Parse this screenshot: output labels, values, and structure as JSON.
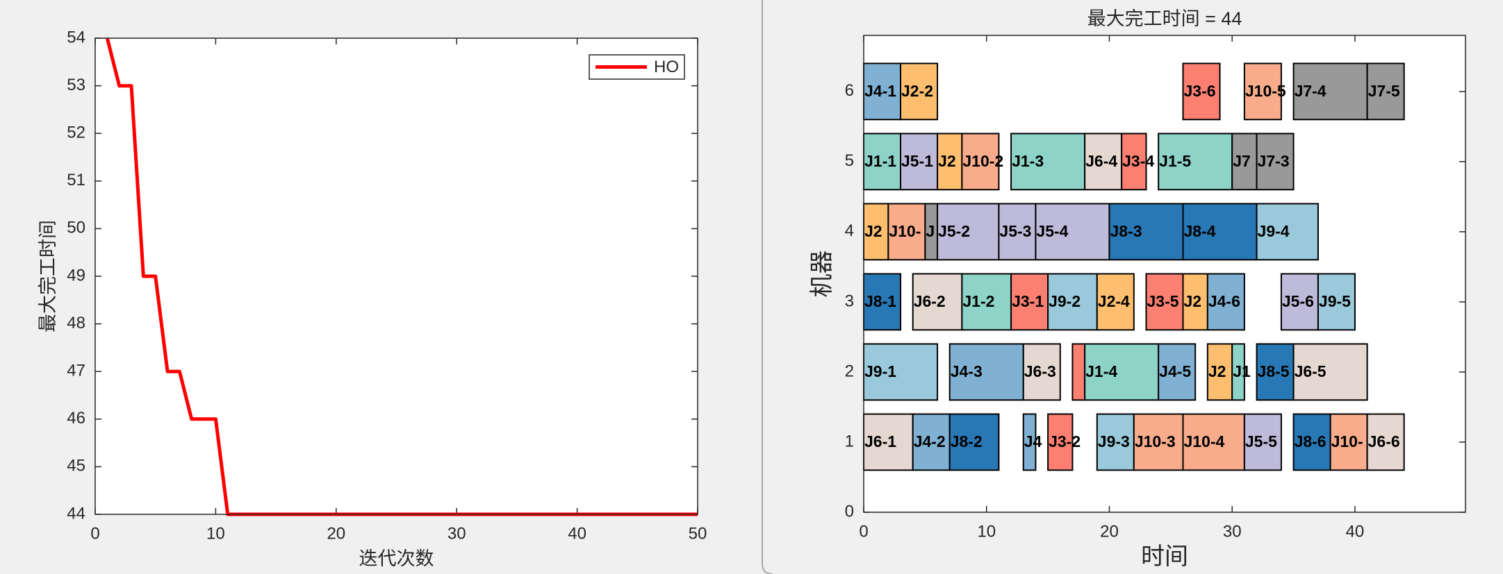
{
  "chart_data": [
    {
      "type": "line",
      "xlabel": "迭代次数",
      "ylabel": "最大完工时间",
      "x": [
        1,
        2,
        3,
        4,
        5,
        6,
        7,
        8,
        9,
        10,
        11,
        12,
        13,
        14,
        15,
        16,
        17,
        18,
        19,
        20,
        21,
        22,
        23,
        24,
        25,
        26,
        27,
        28,
        29,
        30,
        31,
        32,
        33,
        34,
        35,
        36,
        37,
        38,
        39,
        40,
        41,
        42,
        43,
        44,
        45,
        46,
        47,
        48,
        49,
        50
      ],
      "series": [
        {
          "name": "HO",
          "color": "#ff0000",
          "values": [
            54,
            53,
            53,
            49,
            49,
            47,
            47,
            46,
            46,
            46,
            44,
            44,
            44,
            44,
            44,
            44,
            44,
            44,
            44,
            44,
            44,
            44,
            44,
            44,
            44,
            44,
            44,
            44,
            44,
            44,
            44,
            44,
            44,
            44,
            44,
            44,
            44,
            44,
            44,
            44,
            44,
            44,
            44,
            44,
            44,
            44,
            44,
            44,
            44,
            44
          ]
        }
      ],
      "xlim": [
        0,
        50
      ],
      "xticks": [
        0,
        10,
        20,
        30,
        40,
        50
      ],
      "ylim": [
        44,
        54
      ],
      "yticks": [
        44,
        45,
        46,
        47,
        48,
        49,
        50,
        51,
        52,
        53,
        54
      ],
      "legend": "upper right"
    },
    {
      "type": "gantt",
      "title": "最大完工时间 = 44",
      "xlabel": "时间",
      "ylabel": "机器",
      "xlim": [
        0,
        49
      ],
      "xticks": [
        0,
        10,
        20,
        30,
        40
      ],
      "ylim": [
        0,
        6.8
      ],
      "yticks": [
        0,
        1,
        2,
        3,
        4,
        5,
        6
      ],
      "tasks": [
        {
          "machine": 6,
          "start": 0,
          "end": 3,
          "label": "J4-1",
          "color": "#80b1d3"
        },
        {
          "machine": 6,
          "start": 3,
          "end": 6,
          "label": "J2-2",
          "color": "#fdbf6f"
        },
        {
          "machine": 6,
          "start": 26,
          "end": 29,
          "label": "J3-6",
          "color": "#fb8072"
        },
        {
          "machine": 6,
          "start": 31,
          "end": 34,
          "label": "J10-5",
          "color": "#f8ac8c"
        },
        {
          "machine": 6,
          "start": 35,
          "end": 41,
          "label": "J7-4",
          "color": "#999999"
        },
        {
          "machine": 6,
          "start": 41,
          "end": 44,
          "label": "J7-5",
          "color": "#999999"
        },
        {
          "machine": 5,
          "start": 0,
          "end": 3,
          "label": "J1-1",
          "color": "#8dd3c7"
        },
        {
          "machine": 5,
          "start": 3,
          "end": 6,
          "label": "J5-1",
          "color": "#bebada"
        },
        {
          "machine": 5,
          "start": 6,
          "end": 8,
          "label": "J2",
          "color": "#fdbf6f"
        },
        {
          "machine": 5,
          "start": 8,
          "end": 11,
          "label": "J10-2",
          "color": "#f8ac8c"
        },
        {
          "machine": 5,
          "start": 12,
          "end": 18,
          "label": "J1-3",
          "color": "#8dd3c7"
        },
        {
          "machine": 5,
          "start": 18,
          "end": 21,
          "label": "J6-4",
          "color": "#e5d8d0"
        },
        {
          "machine": 5,
          "start": 21,
          "end": 23,
          "label": "J3-4",
          "color": "#fb8072"
        },
        {
          "machine": 5,
          "start": 24,
          "end": 30,
          "label": "J1-5",
          "color": "#8dd3c7"
        },
        {
          "machine": 5,
          "start": 30,
          "end": 32,
          "label": "J7",
          "color": "#999999"
        },
        {
          "machine": 5,
          "start": 32,
          "end": 35,
          "label": "J7-3",
          "color": "#999999"
        },
        {
          "machine": 4,
          "start": 0,
          "end": 2,
          "label": "J2",
          "color": "#fdbf6f"
        },
        {
          "machine": 4,
          "start": 2,
          "end": 5,
          "label": "J10-",
          "color": "#f8ac8c"
        },
        {
          "machine": 4,
          "start": 5,
          "end": 6,
          "label": "J",
          "color": "#999999"
        },
        {
          "machine": 4,
          "start": 6,
          "end": 11,
          "label": "J5-2",
          "color": "#bebada"
        },
        {
          "machine": 4,
          "start": 11,
          "end": 14,
          "label": "J5-3",
          "color": "#bebada"
        },
        {
          "machine": 4,
          "start": 14,
          "end": 20,
          "label": "J5-4",
          "color": "#bebada"
        },
        {
          "machine": 4,
          "start": 20,
          "end": 26,
          "label": "J8-3",
          "color": "#2878b5"
        },
        {
          "machine": 4,
          "start": 26,
          "end": 32,
          "label": "J8-4",
          "color": "#2878b5"
        },
        {
          "machine": 4,
          "start": 32,
          "end": 37,
          "label": "J9-4",
          "color": "#9ac9db"
        },
        {
          "machine": 3,
          "start": 0,
          "end": 3,
          "label": "J8-1",
          "color": "#2878b5"
        },
        {
          "machine": 3,
          "start": 4,
          "end": 8,
          "label": "J6-2",
          "color": "#e5d8d0"
        },
        {
          "machine": 3,
          "start": 8,
          "end": 12,
          "label": "J1-2",
          "color": "#8dd3c7"
        },
        {
          "machine": 3,
          "start": 12,
          "end": 15,
          "label": "J3-1",
          "color": "#fb8072"
        },
        {
          "machine": 3,
          "start": 15,
          "end": 19,
          "label": "J9-2",
          "color": "#9ac9db"
        },
        {
          "machine": 3,
          "start": 19,
          "end": 22,
          "label": "J2-4",
          "color": "#fdbf6f"
        },
        {
          "machine": 3,
          "start": 23,
          "end": 26,
          "label": "J3-5",
          "color": "#fb8072"
        },
        {
          "machine": 3,
          "start": 26,
          "end": 28,
          "label": "J2",
          "color": "#fdbf6f"
        },
        {
          "machine": 3,
          "start": 28,
          "end": 31,
          "label": "J4-6",
          "color": "#80b1d3"
        },
        {
          "machine": 3,
          "start": 34,
          "end": 37,
          "label": "J5-6",
          "color": "#bebada"
        },
        {
          "machine": 3,
          "start": 37,
          "end": 40,
          "label": "J9-5",
          "color": "#9ac9db"
        },
        {
          "machine": 2,
          "start": 0,
          "end": 6,
          "label": "J9-1",
          "color": "#9ac9db"
        },
        {
          "machine": 2,
          "start": 7,
          "end": 13,
          "label": "J4-3",
          "color": "#80b1d3"
        },
        {
          "machine": 2,
          "start": 13,
          "end": 16,
          "label": "J6-3",
          "color": "#e5d8d0"
        },
        {
          "machine": 2,
          "start": 17,
          "end": 18,
          "label": null,
          "color": "#fb8072"
        },
        {
          "machine": 2,
          "start": 18,
          "end": 24,
          "label": "J1-4",
          "color": "#8dd3c7"
        },
        {
          "machine": 2,
          "start": 24,
          "end": 27,
          "label": "J4-5",
          "color": "#80b1d3"
        },
        {
          "machine": 2,
          "start": 28,
          "end": 30,
          "label": "J2",
          "color": "#fdbf6f"
        },
        {
          "machine": 2,
          "start": 30,
          "end": 31,
          "label": "J1",
          "color": "#8dd3c7"
        },
        {
          "machine": 2,
          "start": 32,
          "end": 35,
          "label": "J8-5",
          "color": "#2878b5"
        },
        {
          "machine": 2,
          "start": 35,
          "end": 41,
          "label": "J6-5",
          "color": "#e5d8d0"
        },
        {
          "machine": 1,
          "start": 0,
          "end": 4,
          "label": "J6-1",
          "color": "#e5d8d0"
        },
        {
          "machine": 1,
          "start": 4,
          "end": 7,
          "label": "J4-2",
          "color": "#80b1d3"
        },
        {
          "machine": 1,
          "start": 7,
          "end": 11,
          "label": "J8-2",
          "color": "#2878b5"
        },
        {
          "machine": 1,
          "start": 13,
          "end": 14,
          "label": "J4",
          "color": "#80b1d3"
        },
        {
          "machine": 1,
          "start": 15,
          "end": 17,
          "label": "J3-2",
          "color": "#fb8072"
        },
        {
          "machine": 1,
          "start": 19,
          "end": 22,
          "label": "J9-3",
          "color": "#9ac9db"
        },
        {
          "machine": 1,
          "start": 22,
          "end": 26,
          "label": "J10-3",
          "color": "#f8ac8c"
        },
        {
          "machine": 1,
          "start": 26,
          "end": 31,
          "label": "J10-4",
          "color": "#f8ac8c"
        },
        {
          "machine": 1,
          "start": 31,
          "end": 34,
          "label": "J5-5",
          "color": "#bebada"
        },
        {
          "machine": 1,
          "start": 35,
          "end": 38,
          "label": "J8-6",
          "color": "#2878b5"
        },
        {
          "machine": 1,
          "start": 38,
          "end": 41,
          "label": "J10-",
          "color": "#f8ac8c"
        },
        {
          "machine": 1,
          "start": 41,
          "end": 44,
          "label": "J6-6",
          "color": "#e5d8d0"
        }
      ]
    }
  ]
}
